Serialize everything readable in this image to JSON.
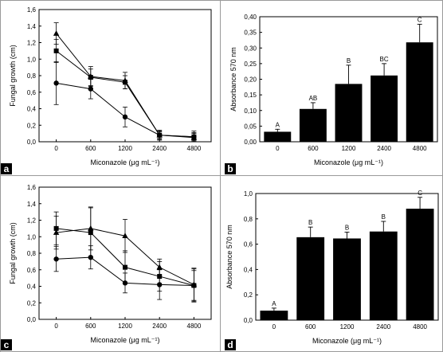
{
  "panels": [
    {
      "tag": "a",
      "chart_data": {
        "type": "line",
        "categories": [
          "0",
          "600",
          "1200",
          "2400",
          "4800"
        ],
        "xlabel": "Miconazole (μg mL⁻¹)",
        "ylabel": "Fungal growth (cm)",
        "ylim": [
          0,
          1.6
        ],
        "yticks": [
          "0,0",
          "0,2",
          "0,4",
          "0,6",
          "0,8",
          "1,0",
          "1,2",
          "1,4",
          "1,6"
        ],
        "series": [
          {
            "marker": "triangle",
            "values": [
              1.31,
              0.79,
              0.74,
              0.08,
              0.05
            ],
            "errors": [
              0.13,
              0.12,
              0.1,
              0.05,
              0.08
            ]
          },
          {
            "marker": "square",
            "values": [
              1.1,
              0.78,
              0.72,
              0.08,
              0.06
            ],
            "errors": [
              0.14,
              0.1,
              0.08,
              0.04,
              0.05
            ]
          },
          {
            "marker": "circle",
            "values": [
              0.71,
              0.64,
              0.3,
              0.08,
              0.06
            ],
            "errors": [
              0.26,
              0.12,
              0.12,
              0.06,
              0.04
            ]
          }
        ]
      }
    },
    {
      "tag": "b",
      "chart_data": {
        "type": "bar",
        "categories": [
          "0",
          "600",
          "1200",
          "2400",
          "4800"
        ],
        "values": [
          0.032,
          0.105,
          0.185,
          0.212,
          0.318
        ],
        "errors": [
          0.008,
          0.02,
          0.06,
          0.038,
          0.058
        ],
        "labels": [
          "A",
          "AB",
          "B",
          "BC",
          "C"
        ],
        "xlabel": "Miconazole (μg mL⁻¹)",
        "ylabel": "Absorbance 570 nm",
        "ylim": [
          0,
          0.4
        ],
        "yticks": [
          "0,00",
          "0,05",
          "0,10",
          "0,15",
          "0,20",
          "0,25",
          "0,30",
          "0,35",
          "0,40"
        ]
      }
    },
    {
      "tag": "c",
      "chart_data": {
        "type": "line",
        "categories": [
          "0",
          "600",
          "1200",
          "2400",
          "4800"
        ],
        "xlabel": "Miconazole (μg mL⁻¹)",
        "ylabel": "Fungal growth (cm)",
        "ylim": [
          0,
          1.6
        ],
        "yticks": [
          "0,0",
          "0,2",
          "0,4",
          "0,6",
          "0,8",
          "1,0",
          "1,2",
          "1,4",
          "1,6"
        ],
        "series": [
          {
            "marker": "triangle",
            "values": [
              1.05,
              1.1,
              1.01,
              0.63,
              0.42
            ],
            "errors": [
              0.2,
              0.26,
              0.2,
              0.1,
              0.2
            ]
          },
          {
            "marker": "square",
            "values": [
              1.1,
              1.05,
              0.63,
              0.52,
              0.41
            ],
            "errors": [
              0.2,
              0.3,
              0.2,
              0.18,
              0.18
            ]
          },
          {
            "marker": "circle",
            "values": [
              0.73,
              0.75,
              0.44,
              0.42,
              0.41
            ],
            "errors": [
              0.15,
              0.14,
              0.12,
              0.18,
              0.2
            ]
          }
        ]
      }
    },
    {
      "tag": "d",
      "chart_data": {
        "type": "bar",
        "categories": [
          "0",
          "600",
          "1200",
          "2400",
          "4800"
        ],
        "values": [
          0.075,
          0.655,
          0.645,
          0.7,
          0.88
        ],
        "errors": [
          0.02,
          0.08,
          0.05,
          0.08,
          0.09
        ],
        "labels": [
          "A",
          "B",
          "B",
          "B",
          "C"
        ],
        "xlabel": "Miconazole (μg mL⁻¹)",
        "ylabel": "Absorbance 570 nm",
        "ylim": [
          0,
          1.0
        ],
        "yticks": [
          "0,0",
          "0,2",
          "0,4",
          "0,6",
          "0,8",
          "1,0"
        ]
      }
    }
  ]
}
